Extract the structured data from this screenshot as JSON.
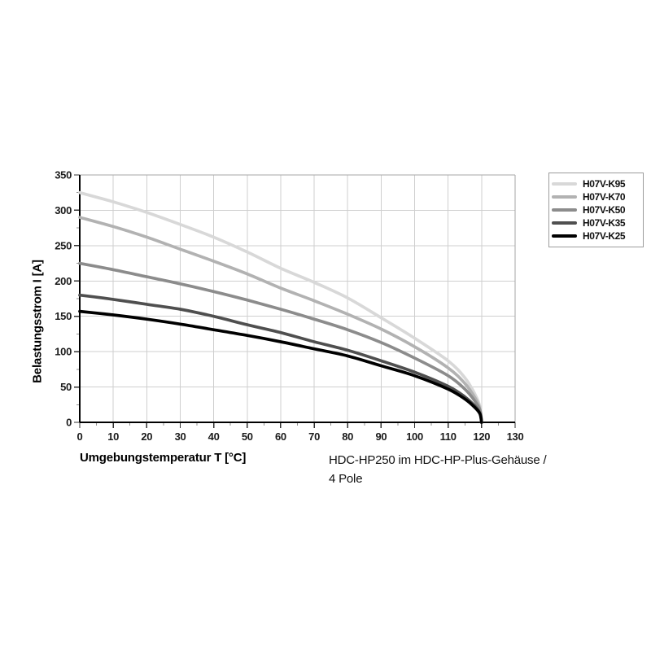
{
  "page": {
    "background": "#ffffff"
  },
  "chart_data": {
    "type": "line",
    "title": "",
    "xlabel": "Umgebungstemperatur T [°C]",
    "ylabel": "Belastungsstrom I [A]",
    "caption_line1": "HDC-HP250 im HDC-HP-Plus-Gehäuse /",
    "caption_line2": "4 Pole",
    "xlim": [
      0,
      130
    ],
    "ylim": [
      0,
      350
    ],
    "x_tick_step": 10,
    "x_minor_tick_step": 5,
    "y_tick_step": 50,
    "y_minor_tick_step": 25,
    "grid": true,
    "legend_position": "top-right-outside",
    "colors": {
      "grid": "#cfcfcf",
      "frame": "#a6a6a6",
      "axis": "#000000",
      "major_tick": "#333333",
      "minor_tick": "#8f8f8f"
    },
    "x": [
      0,
      10,
      20,
      30,
      40,
      50,
      60,
      70,
      80,
      90,
      100,
      110,
      115,
      118,
      119.5,
      120
    ],
    "series": [
      {
        "name": "H07V-K95",
        "color": "#d8d8d8",
        "values": [
          325,
          312,
          297,
          280,
          262,
          241,
          218,
          198,
          176,
          148,
          119,
          87,
          63,
          40,
          22,
          0
        ]
      },
      {
        "name": "H07V-K70",
        "color": "#b2b2b2",
        "values": [
          290,
          277,
          262,
          245,
          228,
          210,
          190,
          172,
          153,
          132,
          107,
          77,
          55,
          35,
          19,
          0
        ]
      },
      {
        "name": "H07V-K50",
        "color": "#8c8c8c",
        "values": [
          225,
          216,
          206,
          196,
          185,
          173,
          160,
          146,
          131,
          113,
          91,
          66,
          47,
          30,
          17,
          0
        ]
      },
      {
        "name": "H07V-K35",
        "color": "#4f4f4f",
        "values": [
          180,
          174,
          167,
          160,
          150,
          138,
          127,
          114,
          102,
          87,
          71,
          51,
          36,
          23,
          13,
          0
        ]
      },
      {
        "name": "H07V-K25",
        "color": "#000000",
        "values": [
          157,
          152,
          146,
          139,
          131,
          123,
          114,
          104,
          94,
          80,
          66,
          47,
          33,
          21,
          12,
          0
        ]
      }
    ]
  }
}
